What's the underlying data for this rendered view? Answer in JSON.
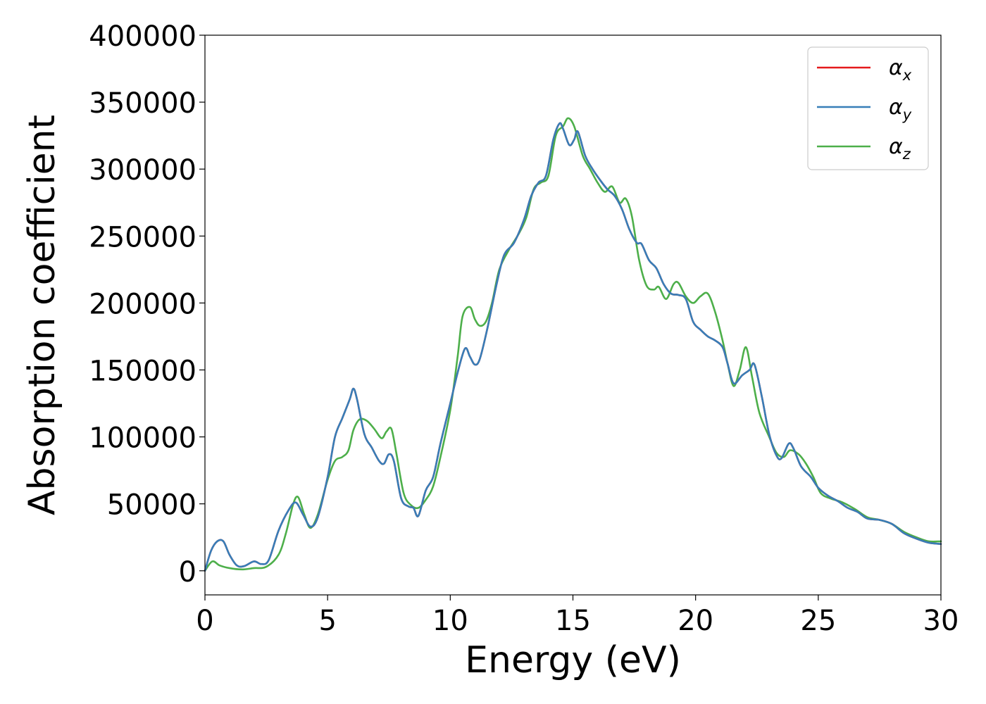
{
  "chart_data": {
    "type": "line",
    "title": "",
    "xlabel": "Energy (eV)",
    "ylabel": "Absorption coefficient",
    "xlim": [
      0,
      30
    ],
    "ylim": [
      -18000,
      400000
    ],
    "xticks": [
      0,
      5,
      10,
      15,
      20,
      25,
      30
    ],
    "yticks": [
      0,
      50000,
      100000,
      150000,
      200000,
      250000,
      300000,
      350000,
      400000
    ],
    "grid": false,
    "legend_position": "top-right",
    "colors": {
      "x": "#e41a1c",
      "y": "#377eb8",
      "z": "#4daf4a"
    },
    "series": [
      {
        "name": "α_x",
        "symbol": "α",
        "subscript": "x",
        "color": "#e41a1c",
        "points": [
          [
            0,
            0
          ],
          [
            0.25,
            15000
          ],
          [
            0.5,
            22000
          ],
          [
            0.75,
            22000
          ],
          [
            1,
            12000
          ],
          [
            1.3,
            4000
          ],
          [
            1.6,
            3500
          ],
          [
            2,
            7000
          ],
          [
            2.3,
            5000
          ],
          [
            2.6,
            8000
          ],
          [
            3,
            30000
          ],
          [
            3.4,
            45000
          ],
          [
            3.7,
            51000
          ],
          [
            4,
            42000
          ],
          [
            4.3,
            33000
          ],
          [
            4.6,
            40000
          ],
          [
            5,
            70000
          ],
          [
            5.3,
            100000
          ],
          [
            5.6,
            114000
          ],
          [
            5.9,
            128000
          ],
          [
            6.05,
            136000
          ],
          [
            6.2,
            128000
          ],
          [
            6.5,
            102000
          ],
          [
            6.8,
            92000
          ],
          [
            7.1,
            82000
          ],
          [
            7.3,
            80000
          ],
          [
            7.5,
            87000
          ],
          [
            7.7,
            82000
          ],
          [
            8,
            54000
          ],
          [
            8.3,
            48000
          ],
          [
            8.5,
            47000
          ],
          [
            8.7,
            41000
          ],
          [
            9,
            60000
          ],
          [
            9.3,
            70000
          ],
          [
            9.6,
            95000
          ],
          [
            10,
            125000
          ],
          [
            10.3,
            148000
          ],
          [
            10.6,
            166000
          ],
          [
            10.8,
            160000
          ],
          [
            11,
            154000
          ],
          [
            11.2,
            158000
          ],
          [
            11.5,
            180000
          ],
          [
            11.9,
            215000
          ],
          [
            12.2,
            236000
          ],
          [
            12.6,
            245000
          ],
          [
            13,
            262000
          ],
          [
            13.3,
            280000
          ],
          [
            13.6,
            290000
          ],
          [
            13.9,
            295000
          ],
          [
            14.2,
            322000
          ],
          [
            14.45,
            334000
          ],
          [
            14.6,
            330000
          ],
          [
            14.85,
            318000
          ],
          [
            15.05,
            322000
          ],
          [
            15.2,
            328000
          ],
          [
            15.5,
            310000
          ],
          [
            15.8,
            300000
          ],
          [
            16.1,
            292000
          ],
          [
            16.4,
            285000
          ],
          [
            16.7,
            280000
          ],
          [
            17,
            270000
          ],
          [
            17.3,
            255000
          ],
          [
            17.6,
            245000
          ],
          [
            17.8,
            244000
          ],
          [
            18.1,
            232000
          ],
          [
            18.4,
            226000
          ],
          [
            18.7,
            214000
          ],
          [
            19,
            207000
          ],
          [
            19.3,
            206000
          ],
          [
            19.6,
            203000
          ],
          [
            19.9,
            186000
          ],
          [
            20.2,
            180000
          ],
          [
            20.5,
            175000
          ],
          [
            20.8,
            172000
          ],
          [
            21.1,
            167000
          ],
          [
            21.3,
            155000
          ],
          [
            21.55,
            140000
          ],
          [
            21.9,
            146000
          ],
          [
            22.2,
            150000
          ],
          [
            22.4,
            154000
          ],
          [
            22.7,
            130000
          ],
          [
            23,
            102000
          ],
          [
            23.3,
            86000
          ],
          [
            23.5,
            84000
          ],
          [
            23.8,
            95000
          ],
          [
            24,
            91000
          ],
          [
            24.3,
            78000
          ],
          [
            24.7,
            70000
          ],
          [
            25,
            62000
          ],
          [
            25.4,
            56000
          ],
          [
            25.8,
            52000
          ],
          [
            26.2,
            47000
          ],
          [
            26.6,
            44000
          ],
          [
            27,
            39000
          ],
          [
            27.5,
            38000
          ],
          [
            28,
            35000
          ],
          [
            28.5,
            28000
          ],
          [
            29,
            24000
          ],
          [
            29.5,
            21000
          ],
          [
            30,
            20000
          ]
        ]
      },
      {
        "name": "α_y",
        "symbol": "α",
        "subscript": "y",
        "color": "#377eb8",
        "points": [
          [
            0,
            0
          ],
          [
            0.25,
            15000
          ],
          [
            0.5,
            22000
          ],
          [
            0.75,
            22000
          ],
          [
            1,
            12000
          ],
          [
            1.3,
            4000
          ],
          [
            1.6,
            3500
          ],
          [
            2,
            7000
          ],
          [
            2.3,
            5000
          ],
          [
            2.6,
            8000
          ],
          [
            3,
            30000
          ],
          [
            3.4,
            45000
          ],
          [
            3.7,
            51000
          ],
          [
            4,
            42000
          ],
          [
            4.3,
            33000
          ],
          [
            4.6,
            40000
          ],
          [
            5,
            70000
          ],
          [
            5.3,
            100000
          ],
          [
            5.6,
            114000
          ],
          [
            5.9,
            128000
          ],
          [
            6.05,
            136000
          ],
          [
            6.2,
            128000
          ],
          [
            6.5,
            102000
          ],
          [
            6.8,
            92000
          ],
          [
            7.1,
            82000
          ],
          [
            7.3,
            80000
          ],
          [
            7.5,
            87000
          ],
          [
            7.7,
            82000
          ],
          [
            8,
            54000
          ],
          [
            8.3,
            48000
          ],
          [
            8.5,
            47000
          ],
          [
            8.7,
            41000
          ],
          [
            9,
            60000
          ],
          [
            9.3,
            70000
          ],
          [
            9.6,
            95000
          ],
          [
            10,
            125000
          ],
          [
            10.3,
            148000
          ],
          [
            10.6,
            166000
          ],
          [
            10.8,
            160000
          ],
          [
            11,
            154000
          ],
          [
            11.2,
            158000
          ],
          [
            11.5,
            180000
          ],
          [
            11.9,
            215000
          ],
          [
            12.2,
            236000
          ],
          [
            12.6,
            245000
          ],
          [
            13,
            262000
          ],
          [
            13.3,
            280000
          ],
          [
            13.6,
            290000
          ],
          [
            13.9,
            295000
          ],
          [
            14.2,
            322000
          ],
          [
            14.45,
            334000
          ],
          [
            14.6,
            330000
          ],
          [
            14.85,
            318000
          ],
          [
            15.05,
            322000
          ],
          [
            15.2,
            328000
          ],
          [
            15.5,
            310000
          ],
          [
            15.8,
            300000
          ],
          [
            16.1,
            292000
          ],
          [
            16.4,
            285000
          ],
          [
            16.7,
            280000
          ],
          [
            17,
            270000
          ],
          [
            17.3,
            255000
          ],
          [
            17.6,
            245000
          ],
          [
            17.8,
            244000
          ],
          [
            18.1,
            232000
          ],
          [
            18.4,
            226000
          ],
          [
            18.7,
            214000
          ],
          [
            19,
            207000
          ],
          [
            19.3,
            206000
          ],
          [
            19.6,
            203000
          ],
          [
            19.9,
            186000
          ],
          [
            20.2,
            180000
          ],
          [
            20.5,
            175000
          ],
          [
            20.8,
            172000
          ],
          [
            21.1,
            167000
          ],
          [
            21.3,
            155000
          ],
          [
            21.55,
            140000
          ],
          [
            21.9,
            146000
          ],
          [
            22.2,
            150000
          ],
          [
            22.4,
            154000
          ],
          [
            22.7,
            130000
          ],
          [
            23,
            102000
          ],
          [
            23.3,
            86000
          ],
          [
            23.5,
            84000
          ],
          [
            23.8,
            95000
          ],
          [
            24,
            91000
          ],
          [
            24.3,
            78000
          ],
          [
            24.7,
            70000
          ],
          [
            25,
            62000
          ],
          [
            25.4,
            56000
          ],
          [
            25.8,
            52000
          ],
          [
            26.2,
            47000
          ],
          [
            26.6,
            44000
          ],
          [
            27,
            39000
          ],
          [
            27.5,
            38000
          ],
          [
            28,
            35000
          ],
          [
            28.5,
            28000
          ],
          [
            29,
            24000
          ],
          [
            29.5,
            21000
          ],
          [
            30,
            20000
          ]
        ]
      },
      {
        "name": "α_z",
        "symbol": "α",
        "subscript": "z",
        "color": "#4daf4a",
        "points": [
          [
            0,
            0
          ],
          [
            0.3,
            7000
          ],
          [
            0.6,
            4000
          ],
          [
            1,
            2000
          ],
          [
            1.5,
            1000
          ],
          [
            2,
            2000
          ],
          [
            2.5,
            3000
          ],
          [
            3,
            12000
          ],
          [
            3.3,
            28000
          ],
          [
            3.6,
            50000
          ],
          [
            3.8,
            55000
          ],
          [
            4.05,
            42000
          ],
          [
            4.3,
            32000
          ],
          [
            4.6,
            42000
          ],
          [
            5,
            68000
          ],
          [
            5.3,
            82000
          ],
          [
            5.6,
            85000
          ],
          [
            5.85,
            90000
          ],
          [
            6.05,
            105000
          ],
          [
            6.3,
            113000
          ],
          [
            6.6,
            112000
          ],
          [
            6.9,
            106000
          ],
          [
            7.2,
            99000
          ],
          [
            7.4,
            104000
          ],
          [
            7.6,
            106000
          ],
          [
            7.8,
            88000
          ],
          [
            8.1,
            58000
          ],
          [
            8.4,
            49000
          ],
          [
            8.7,
            47000
          ],
          [
            9,
            53000
          ],
          [
            9.3,
            63000
          ],
          [
            9.6,
            85000
          ],
          [
            10,
            120000
          ],
          [
            10.3,
            160000
          ],
          [
            10.5,
            190000
          ],
          [
            10.8,
            197000
          ],
          [
            11,
            188000
          ],
          [
            11.2,
            183000
          ],
          [
            11.45,
            186000
          ],
          [
            11.7,
            200000
          ],
          [
            12,
            225000
          ],
          [
            12.4,
            240000
          ],
          [
            12.8,
            252000
          ],
          [
            13.1,
            264000
          ],
          [
            13.4,
            285000
          ],
          [
            13.7,
            290000
          ],
          [
            14,
            295000
          ],
          [
            14.3,
            325000
          ],
          [
            14.6,
            332000
          ],
          [
            14.8,
            338000
          ],
          [
            15.05,
            332000
          ],
          [
            15.4,
            310000
          ],
          [
            15.7,
            300000
          ],
          [
            16,
            290000
          ],
          [
            16.3,
            283000
          ],
          [
            16.6,
            287000
          ],
          [
            16.9,
            275000
          ],
          [
            17.15,
            278000
          ],
          [
            17.4,
            265000
          ],
          [
            17.7,
            232000
          ],
          [
            18,
            213000
          ],
          [
            18.3,
            210000
          ],
          [
            18.5,
            212000
          ],
          [
            18.8,
            203000
          ],
          [
            19.1,
            214000
          ],
          [
            19.3,
            215000
          ],
          [
            19.6,
            205000
          ],
          [
            19.9,
            200000
          ],
          [
            20.2,
            205000
          ],
          [
            20.5,
            207000
          ],
          [
            20.8,
            193000
          ],
          [
            21.1,
            172000
          ],
          [
            21.3,
            155000
          ],
          [
            21.55,
            138000
          ],
          [
            21.8,
            150000
          ],
          [
            22.05,
            167000
          ],
          [
            22.3,
            145000
          ],
          [
            22.6,
            118000
          ],
          [
            23,
            100000
          ],
          [
            23.3,
            88000
          ],
          [
            23.6,
            85000
          ],
          [
            23.85,
            90000
          ],
          [
            24.2,
            87000
          ],
          [
            24.5,
            80000
          ],
          [
            24.8,
            70000
          ],
          [
            25.1,
            58000
          ],
          [
            25.5,
            54000
          ],
          [
            26,
            51000
          ],
          [
            26.5,
            46000
          ],
          [
            27,
            40000
          ],
          [
            27.5,
            38000
          ],
          [
            28,
            35000
          ],
          [
            28.5,
            29000
          ],
          [
            29,
            25000
          ],
          [
            29.5,
            22000
          ],
          [
            30,
            22000
          ]
        ]
      }
    ]
  }
}
